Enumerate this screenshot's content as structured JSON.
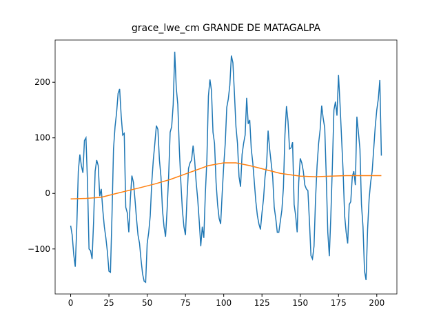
{
  "chart_data": {
    "type": "line",
    "title": "grace_lwe_cm GRANDE DE MATAGALPA",
    "xlim": [
      -10.15,
      213.15
    ],
    "ylim": [
      -181,
      276
    ],
    "xticks": [
      0,
      25,
      50,
      75,
      100,
      125,
      150,
      175,
      200
    ],
    "yticks": [
      {
        "value": -100,
        "label": "−100"
      },
      0,
      100,
      200
    ],
    "series": [
      {
        "color": "#1f77b4",
        "x": [
          0,
          1,
          2,
          3,
          4,
          5,
          6,
          7,
          8,
          9,
          10,
          11,
          12,
          13,
          14,
          15,
          16,
          17,
          18,
          19,
          20,
          21,
          22,
          23,
          24,
          25,
          26,
          27,
          28,
          29,
          30,
          31,
          32,
          33,
          34,
          35,
          36,
          37,
          38,
          39,
          40,
          41,
          42,
          43,
          44,
          45,
          46,
          47,
          48,
          49,
          50,
          51,
          52,
          53,
          54,
          55,
          56,
          57,
          58,
          59,
          60,
          61,
          62,
          63,
          64,
          65,
          66,
          67,
          68,
          69,
          70,
          71,
          72,
          73,
          74,
          75,
          76,
          77,
          78,
          79,
          80,
          81,
          82,
          83,
          84,
          85,
          86,
          87,
          88,
          89,
          90,
          91,
          92,
          93,
          94,
          95,
          96,
          97,
          98,
          99,
          100,
          101,
          102,
          103,
          104,
          105,
          106,
          107,
          108,
          109,
          110,
          111,
          112,
          113,
          114,
          115,
          116,
          117,
          118,
          119,
          120,
          121,
          122,
          123,
          124,
          125,
          126,
          127,
          128,
          129,
          130,
          131,
          132,
          133,
          134,
          135,
          136,
          137,
          138,
          139,
          140,
          141,
          142,
          143,
          144,
          145,
          146,
          147,
          148,
          149,
          150,
          151,
          152,
          153,
          154,
          155,
          156,
          157,
          158,
          159,
          160,
          161,
          162,
          163,
          164,
          165,
          166,
          167,
          168,
          169,
          170,
          171,
          172,
          173,
          174,
          175,
          176,
          177,
          178,
          179,
          180,
          181,
          182,
          183,
          184,
          185,
          186,
          187,
          188,
          189,
          190,
          191,
          192,
          193,
          194,
          195,
          196,
          197,
          198,
          199,
          200,
          201,
          202,
          203
        ],
        "values": [
          -58,
          -75,
          -110,
          -132,
          -60,
          40,
          70,
          50,
          37,
          95,
          100,
          20,
          -100,
          -103,
          -118,
          -50,
          40,
          60,
          50,
          -5,
          8,
          -30,
          -60,
          -80,
          -105,
          -140,
          -142,
          -40,
          80,
          120,
          145,
          180,
          188,
          140,
          105,
          108,
          -25,
          -35,
          -70,
          -10,
          32,
          20,
          -10,
          -45,
          -75,
          -90,
          -120,
          -145,
          -158,
          -160,
          -90,
          -70,
          -40,
          20,
          60,
          90,
          122,
          115,
          60,
          30,
          -30,
          -60,
          -78,
          -30,
          30,
          110,
          120,
          160,
          255,
          190,
          160,
          80,
          20,
          -30,
          -60,
          -75,
          -10,
          45,
          55,
          60,
          86,
          60,
          20,
          -10,
          -50,
          -95,
          -60,
          -80,
          0,
          60,
          175,
          205,
          185,
          110,
          90,
          20,
          -20,
          -45,
          -55,
          0,
          50,
          90,
          155,
          170,
          195,
          248,
          235,
          180,
          120,
          90,
          30,
          12,
          70,
          90,
          105,
          172,
          125,
          132,
          80,
          55,
          20,
          -15,
          -40,
          -55,
          -65,
          -35,
          -10,
          30,
          50,
          113,
          80,
          55,
          30,
          -25,
          -45,
          -70,
          -70,
          -50,
          -30,
          10,
          105,
          157,
          130,
          80,
          82,
          92,
          -20,
          -40,
          -70,
          20,
          63,
          55,
          40,
          15,
          8,
          5,
          -50,
          -112,
          -118,
          -95,
          -10,
          50,
          90,
          115,
          158,
          135,
          118,
          30,
          -70,
          -113,
          -40,
          50,
          150,
          165,
          140,
          213,
          160,
          100,
          40,
          -40,
          -70,
          -90,
          -20,
          -15,
          30,
          40,
          15,
          138,
          110,
          80,
          -20,
          -60,
          -140,
          -156,
          -65,
          -10,
          20,
          40,
          80,
          120,
          150,
          170,
          204,
          68
        ]
      },
      {
        "color": "#ff7f0e",
        "x": [
          0,
          10,
          20,
          30,
          45,
          55,
          65,
          80,
          90,
          100,
          108,
          117,
          127,
          137,
          150,
          160,
          170,
          180,
          190,
          203
        ],
        "values": [
          -10,
          -9,
          -7,
          0,
          10,
          17,
          25,
          40,
          50,
          55,
          55,
          50,
          43,
          36,
          31,
          30,
          31,
          32,
          32,
          32
        ]
      }
    ]
  }
}
